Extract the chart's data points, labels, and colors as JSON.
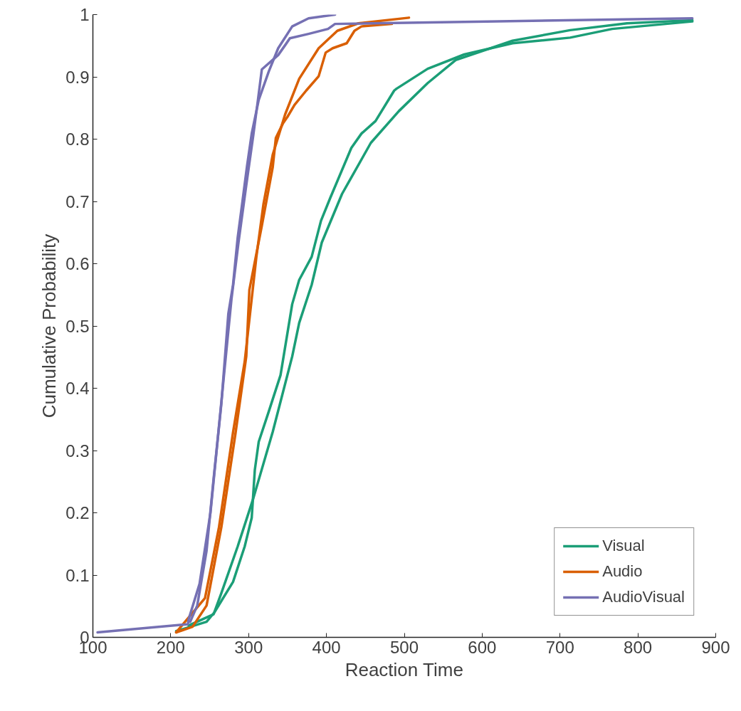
{
  "chart_data": {
    "type": "line",
    "xlabel": "Reaction Time",
    "ylabel": "Cumulative Probability",
    "xlim": [
      100,
      900
    ],
    "xticks": [
      100,
      200,
      300,
      400,
      500,
      600,
      700,
      800,
      900
    ],
    "ylim": [
      0,
      1
    ],
    "yticks": [
      0,
      0.1,
      0.2,
      0.3,
      0.4,
      0.5,
      0.6,
      0.7,
      0.8,
      0.9,
      1
    ],
    "grid": false,
    "legend": "bottom right",
    "marker": "none",
    "line_style": "solid",
    "series": [
      {
        "name": "Visual",
        "color": "#1b9e77",
        "x": [
          207,
          246,
          256,
          280,
          295,
          304,
          308,
          313,
          326,
          341,
          356,
          365,
          381,
          393,
          405,
          432,
          445,
          463,
          487,
          490,
          530,
          577,
          639,
          713,
          767,
          870
        ],
        "values": [
          0.01,
          0.025,
          0.04,
          0.089,
          0.146,
          0.192,
          0.269,
          0.314,
          0.363,
          0.421,
          0.535,
          0.574,
          0.611,
          0.669,
          0.706,
          0.786,
          0.809,
          0.829,
          0.878,
          0.881,
          0.913,
          0.936,
          0.954,
          0.963,
          0.977,
          0.989
        ]
      },
      {
        "color": "#1b9e77",
        "x": [
          223,
          255,
          265,
          286,
          306,
          331,
          356,
          365,
          381,
          394,
          420,
          457,
          493,
          530,
          566,
          639,
          713,
          786,
          870
        ],
        "values": [
          0.019,
          0.037,
          0.071,
          0.146,
          0.223,
          0.33,
          0.451,
          0.505,
          0.566,
          0.634,
          0.712,
          0.794,
          0.845,
          0.89,
          0.927,
          0.958,
          0.975,
          0.986,
          0.991
        ]
      },
      {
        "name": "Audio",
        "color": "#d95f02",
        "x": [
          207,
          228,
          246,
          265,
          283,
          297,
          301,
          317,
          331,
          335,
          344,
          350,
          359,
          374,
          390,
          399,
          408,
          426,
          436,
          445,
          484
        ],
        "values": [
          0.008,
          0.017,
          0.051,
          0.177,
          0.326,
          0.451,
          0.558,
          0.661,
          0.755,
          0.802,
          0.825,
          0.836,
          0.855,
          0.878,
          0.901,
          0.939,
          0.946,
          0.954,
          0.974,
          0.981,
          0.985
        ]
      },
      {
        "color": "#d95f02",
        "x": [
          207,
          244,
          262,
          280,
          295,
          310,
          319,
          331,
          347,
          365,
          390,
          414,
          441,
          506
        ],
        "values": [
          0.008,
          0.063,
          0.177,
          0.329,
          0.443,
          0.611,
          0.695,
          0.775,
          0.84,
          0.897,
          0.946,
          0.974,
          0.986,
          0.995
        ]
      },
      {
        "name": "AudioVisual",
        "color": "#7570b3",
        "x": [
          106,
          222,
          223,
          237,
          251,
          260,
          269,
          278,
          287,
          297,
          306,
          312,
          317,
          338,
          347,
          353,
          377,
          402,
          411,
          870
        ],
        "values": [
          0.008,
          0.021,
          0.029,
          0.086,
          0.2,
          0.314,
          0.429,
          0.543,
          0.634,
          0.726,
          0.806,
          0.863,
          0.912,
          0.935,
          0.951,
          0.962,
          0.969,
          0.977,
          0.985,
          0.994
        ]
      },
      {
        "color": "#7570b3",
        "x": [
          225,
          234,
          246,
          255,
          265,
          274,
          280,
          286,
          292,
          298,
          304,
          313,
          326,
          338,
          356,
          377,
          411
        ],
        "values": [
          0.025,
          0.051,
          0.139,
          0.254,
          0.375,
          0.52,
          0.566,
          0.642,
          0.699,
          0.757,
          0.809,
          0.863,
          0.909,
          0.946,
          0.981,
          0.994,
          1.0
        ]
      }
    ]
  }
}
